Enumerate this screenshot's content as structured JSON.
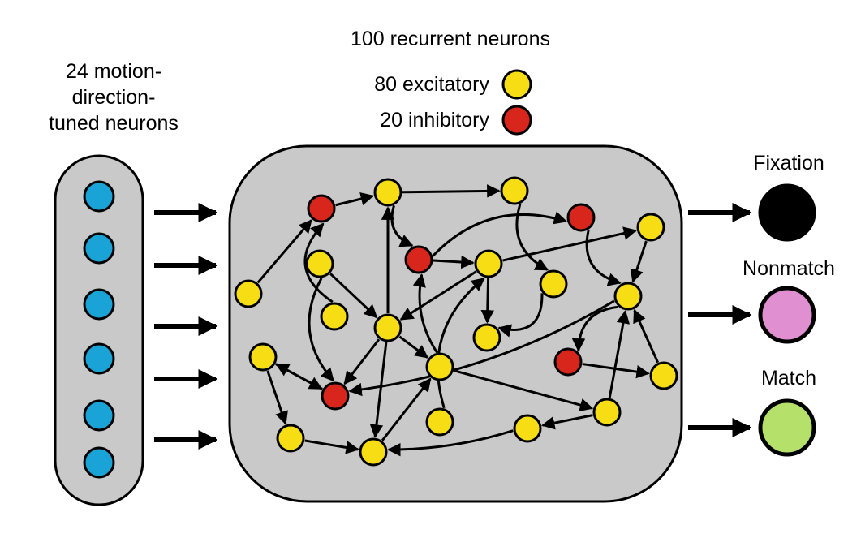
{
  "input_layer": {
    "label": "24 motion-direction-tuned neurons",
    "label_lines": [
      "24 motion-",
      "direction-",
      "tuned neurons"
    ],
    "color": "#1aa3d6"
  },
  "recurrent_layer": {
    "title": "100 recurrent neurons",
    "excitatory": {
      "label": "80 excitatory",
      "color": "#f7de14"
    },
    "inhibitory": {
      "label": "20 inhibitory",
      "color": "#d9261c"
    }
  },
  "outputs": [
    {
      "label": "Fixation",
      "color": "#000000"
    },
    {
      "label": "Nonmatch",
      "color": "#e08fd1"
    },
    {
      "label": "Match",
      "color": "#b5e06a"
    }
  ],
  "colors": {
    "panel": "#c9c9c9",
    "panel_stroke": "#000000"
  }
}
